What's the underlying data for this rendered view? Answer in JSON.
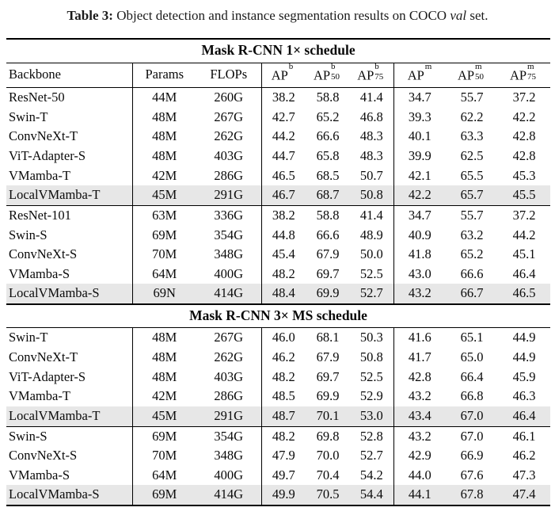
{
  "caption": {
    "label": "Table 3:",
    "before_italic": "Object detection and instance segmentation results on COCO",
    "italic": "val",
    "after_italic": "set."
  },
  "colors": {
    "background": "#ffffff",
    "text": "#000000",
    "rule": "#000000",
    "highlight_bg": "#e7e7e7"
  },
  "table": {
    "header": {
      "backbone": "Backbone",
      "params": "Params",
      "flops": "FLOPs",
      "ap_columns": [
        {
          "base": "AP",
          "sup": "b",
          "sub": ""
        },
        {
          "base": "AP",
          "sup": "b",
          "sub": "50"
        },
        {
          "base": "AP",
          "sup": "b",
          "sub": "75"
        },
        {
          "base": "AP",
          "sup": "m",
          "sub": ""
        },
        {
          "base": "AP",
          "sup": "m",
          "sub": "50"
        },
        {
          "base": "AP",
          "sup": "m",
          "sub": "75"
        }
      ]
    },
    "sections": [
      {
        "title": "Mask R-CNN 1× schedule",
        "show_header": true,
        "groups": [
          {
            "rows": [
              {
                "cells": [
                  "ResNet-50",
                  "44M",
                  "260G",
                  "38.2",
                  "58.8",
                  "41.4",
                  "34.7",
                  "55.7",
                  "37.2"
                ],
                "highlight": false
              },
              {
                "cells": [
                  "Swin-T",
                  "48M",
                  "267G",
                  "42.7",
                  "65.2",
                  "46.8",
                  "39.3",
                  "62.2",
                  "42.2"
                ],
                "highlight": false
              },
              {
                "cells": [
                  "ConvNeXt-T",
                  "48M",
                  "262G",
                  "44.2",
                  "66.6",
                  "48.3",
                  "40.1",
                  "63.3",
                  "42.8"
                ],
                "highlight": false
              },
              {
                "cells": [
                  "ViT-Adapter-S",
                  "48M",
                  "403G",
                  "44.7",
                  "65.8",
                  "48.3",
                  "39.9",
                  "62.5",
                  "42.8"
                ],
                "highlight": false
              },
              {
                "cells": [
                  "VMamba-T",
                  "42M",
                  "286G",
                  "46.5",
                  "68.5",
                  "50.7",
                  "42.1",
                  "65.5",
                  "45.3"
                ],
                "highlight": false
              },
              {
                "cells": [
                  "LocalVMamba-T",
                  "45M",
                  "291G",
                  "46.7",
                  "68.7",
                  "50.8",
                  "42.2",
                  "65.7",
                  "45.5"
                ],
                "highlight": true
              }
            ]
          },
          {
            "rows": [
              {
                "cells": [
                  "ResNet-101",
                  "63M",
                  "336G",
                  "38.2",
                  "58.8",
                  "41.4",
                  "34.7",
                  "55.7",
                  "37.2"
                ],
                "highlight": false
              },
              {
                "cells": [
                  "Swin-S",
                  "69M",
                  "354G",
                  "44.8",
                  "66.6",
                  "48.9",
                  "40.9",
                  "63.2",
                  "44.2"
                ],
                "highlight": false
              },
              {
                "cells": [
                  "ConvNeXt-S",
                  "70M",
                  "348G",
                  "45.4",
                  "67.9",
                  "50.0",
                  "41.8",
                  "65.2",
                  "45.1"
                ],
                "highlight": false
              },
              {
                "cells": [
                  "VMamba-S",
                  "64M",
                  "400G",
                  "48.2",
                  "69.7",
                  "52.5",
                  "43.0",
                  "66.6",
                  "46.4"
                ],
                "highlight": false
              },
              {
                "cells": [
                  "LocalVMamba-S",
                  "69N",
                  "414G",
                  "48.4",
                  "69.9",
                  "52.7",
                  "43.2",
                  "66.7",
                  "46.5"
                ],
                "highlight": true
              }
            ]
          }
        ]
      },
      {
        "title": "Mask R-CNN 3× MS schedule",
        "show_header": false,
        "groups": [
          {
            "rows": [
              {
                "cells": [
                  "Swin-T",
                  "48M",
                  "267G",
                  "46.0",
                  "68.1",
                  "50.3",
                  "41.6",
                  "65.1",
                  "44.9"
                ],
                "highlight": false
              },
              {
                "cells": [
                  "ConvNeXt-T",
                  "48M",
                  "262G",
                  "46.2",
                  "67.9",
                  "50.8",
                  "41.7",
                  "65.0",
                  "44.9"
                ],
                "highlight": false
              },
              {
                "cells": [
                  "ViT-Adapter-S",
                  "48M",
                  "403G",
                  "48.2",
                  "69.7",
                  "52.5",
                  "42.8",
                  "66.4",
                  "45.9"
                ],
                "highlight": false
              },
              {
                "cells": [
                  "VMamba-T",
                  "42M",
                  "286G",
                  "48.5",
                  "69.9",
                  "52.9",
                  "43.2",
                  "66.8",
                  "46.3"
                ],
                "highlight": false
              },
              {
                "cells": [
                  "LocalVMamba-T",
                  "45M",
                  "291G",
                  "48.7",
                  "70.1",
                  "53.0",
                  "43.4",
                  "67.0",
                  "46.4"
                ],
                "highlight": true
              }
            ]
          },
          {
            "rows": [
              {
                "cells": [
                  "Swin-S",
                  "69M",
                  "354G",
                  "48.2",
                  "69.8",
                  "52.8",
                  "43.2",
                  "67.0",
                  "46.1"
                ],
                "highlight": false
              },
              {
                "cells": [
                  "ConvNeXt-S",
                  "70M",
                  "348G",
                  "47.9",
                  "70.0",
                  "52.7",
                  "42.9",
                  "66.9",
                  "46.2"
                ],
                "highlight": false
              },
              {
                "cells": [
                  "VMamba-S",
                  "64M",
                  "400G",
                  "49.7",
                  "70.4",
                  "54.2",
                  "44.0",
                  "67.6",
                  "47.3"
                ],
                "highlight": false
              },
              {
                "cells": [
                  "LocalVMamba-S",
                  "69M",
                  "414G",
                  "49.9",
                  "70.5",
                  "54.4",
                  "44.1",
                  "67.8",
                  "47.4"
                ],
                "highlight": true
              }
            ]
          }
        ]
      }
    ]
  }
}
